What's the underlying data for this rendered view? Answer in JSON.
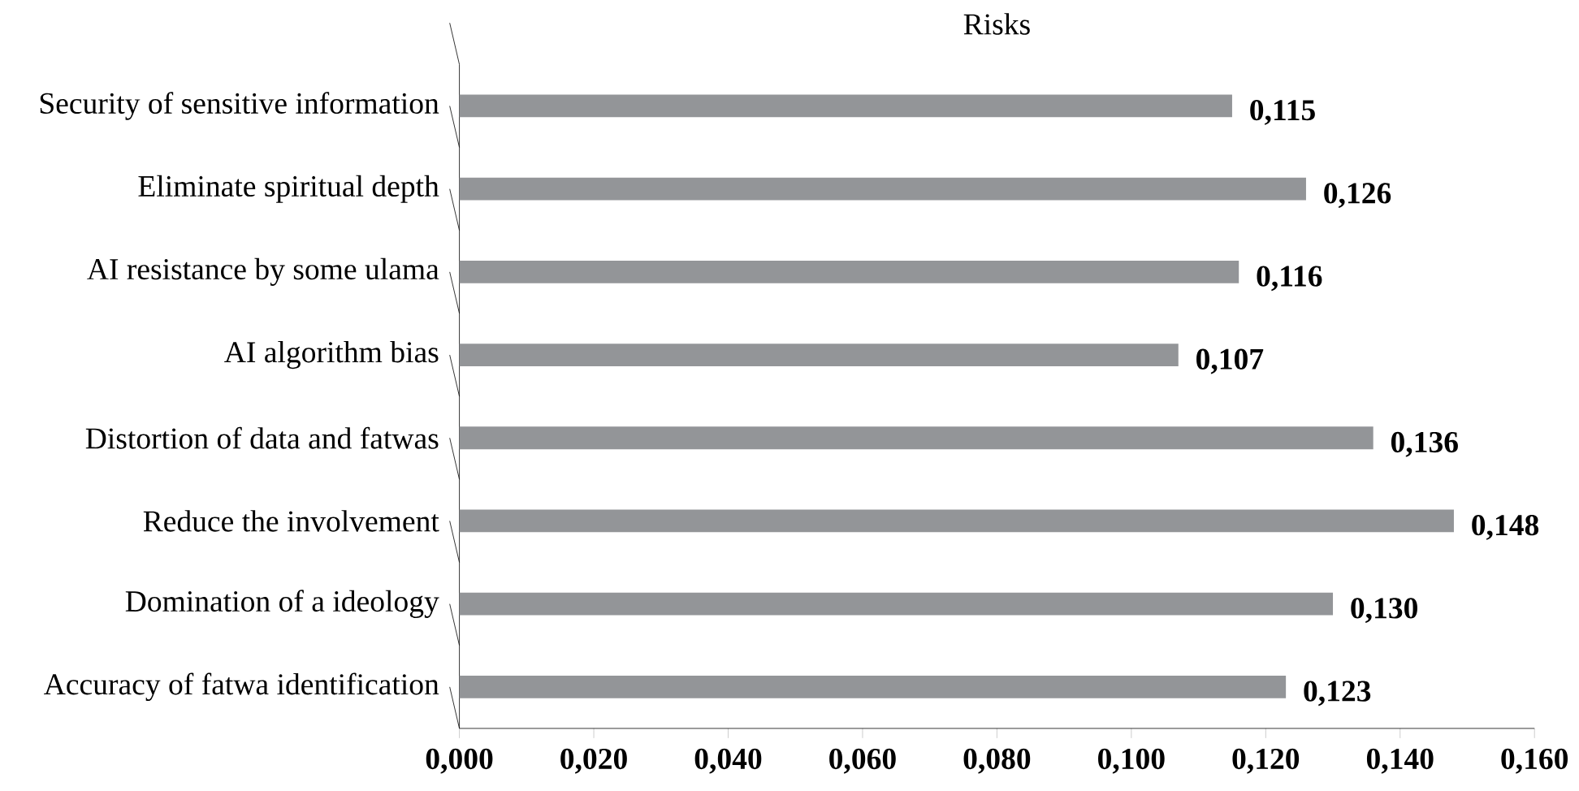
{
  "chart_data": {
    "type": "bar",
    "orientation": "horizontal",
    "title": "Risks",
    "categories": [
      "Security of sensitive information",
      "Eliminate spiritual depth",
      "AI resistance by some ulama",
      "AI algorithm bias",
      "Distortion of data and fatwas",
      "Reduce the involvement",
      "Domination of a ideology",
      "Accuracy of fatwa identification"
    ],
    "values": [
      0.115,
      0.126,
      0.116,
      0.107,
      0.136,
      0.148,
      0.13,
      0.123
    ],
    "value_labels": [
      "0,115",
      "0,126",
      "0,116",
      "0,107",
      "0,136",
      "0,148",
      "0,130",
      "0,123"
    ],
    "color": "#939598",
    "xlim": [
      0,
      0.16
    ],
    "xticks": [
      {
        "value": 0,
        "label": "0,000"
      },
      {
        "value": 0.02,
        "label": "0,020"
      },
      {
        "value": 0.04,
        "label": "0,040"
      },
      {
        "value": 0.06,
        "label": "0,060"
      },
      {
        "value": 0.08,
        "label": "0,080"
      },
      {
        "value": 0.1,
        "label": "0,100"
      },
      {
        "value": 0.12,
        "label": "0,120"
      },
      {
        "value": 0.14,
        "label": "0,140"
      },
      {
        "value": 0.16,
        "label": "0,160"
      }
    ],
    "grid": false
  }
}
